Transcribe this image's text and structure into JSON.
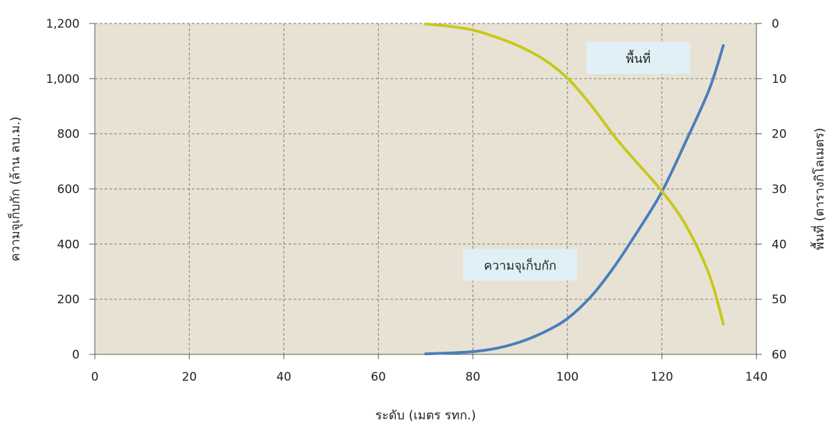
{
  "chart_data": {
    "type": "line",
    "xlabel": "ระดับ (เมตร รทก.)",
    "ylabel_left": "ความจุเก็บกัก (ล้าน ลบ.ม.)",
    "ylabel_right": "พื้นที่ (ตารางกิโลเมตร)",
    "xlim": [
      0,
      140
    ],
    "ylim_left": [
      0,
      1200
    ],
    "ylim_right": [
      60,
      0
    ],
    "right_axis_inverted": true,
    "grid": true,
    "x_ticks": [
      "0",
      "20",
      "40",
      "60",
      "80",
      "100",
      "120",
      "140"
    ],
    "y_left_ticks": [
      "0",
      "200",
      "400",
      "600",
      "800",
      "1,000",
      "1,200"
    ],
    "y_right_ticks": [
      "0",
      "10",
      "20",
      "30",
      "40",
      "50",
      "60"
    ],
    "series": [
      {
        "name": "ความจุเก็บกัก",
        "axis": "left",
        "color": "#4a7ebb",
        "x": [
          70,
          75,
          80,
          85,
          90,
          95,
          100,
          105,
          110,
          115,
          120,
          125,
          130,
          133
        ],
        "y": [
          2,
          5,
          10,
          22,
          45,
          80,
          130,
          210,
          320,
          450,
          590,
          770,
          960,
          1120
        ]
      },
      {
        "name": "พื้นที่",
        "axis": "right",
        "color": "#c8c81a",
        "x": [
          70,
          75,
          80,
          85,
          90,
          95,
          100,
          105,
          110,
          115,
          120,
          125,
          130,
          133
        ],
        "y": [
          0.1,
          0.5,
          1.2,
          2.5,
          4.2,
          6.5,
          9.9,
          14.8,
          20.5,
          25.5,
          30.4,
          36.5,
          45.5,
          54.5
        ]
      }
    ],
    "annotations": [
      {
        "text": "พื้นที่",
        "x": 115,
        "y_left": 1075
      },
      {
        "text": "ความจุเก็บกัก",
        "x": 90,
        "y_left": 325
      }
    ],
    "colors": {
      "plot_background": "#e8e2d4",
      "label_box": "#dff1f6",
      "grid": "#8a8a8a"
    }
  }
}
